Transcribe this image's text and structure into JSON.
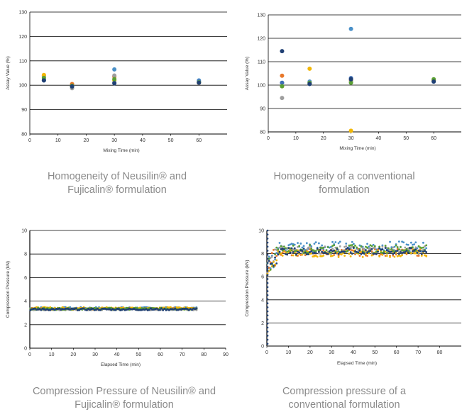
{
  "chart_data": [
    {
      "type": "scatter",
      "title": "",
      "xlabel": "Mixing Time (min)",
      "ylabel": "Assay Value (%)",
      "xlim": [
        0,
        70
      ],
      "ylim": [
        80,
        130
      ],
      "xticks": [
        0,
        10,
        20,
        30,
        40,
        50,
        60
      ],
      "yticks": [
        80,
        90,
        100,
        110,
        120,
        130
      ],
      "grid": "horizontal",
      "series": [
        {
          "color": "#4a90c8",
          "points": [
            [
              5,
              102.5
            ],
            [
              15,
              100.0
            ],
            [
              30,
              106.5
            ],
            [
              60,
              102.0
            ]
          ]
        },
        {
          "color": "#e8782a",
          "points": [
            [
              5,
              104.0
            ],
            [
              15,
              100.5
            ],
            [
              30,
              103.5
            ],
            [
              60,
              101.0
            ]
          ]
        },
        {
          "color": "#9e9e9e",
          "points": [
            [
              5,
              103.5
            ],
            [
              15,
              98.8
            ],
            [
              30,
              104.0
            ],
            [
              60,
              101.5
            ]
          ]
        },
        {
          "color": "#f2b705",
          "points": [
            [
              5,
              104.2
            ],
            [
              15,
              99.5
            ],
            [
              30,
              102.0
            ],
            [
              60,
              101.0
            ]
          ]
        },
        {
          "color": "#3f6eb5",
          "points": [
            [
              5,
              102.0
            ],
            [
              15,
              99.5
            ],
            [
              30,
              101.0
            ],
            [
              60,
              101.5
            ]
          ]
        },
        {
          "color": "#5aa033",
          "points": [
            [
              5,
              103.0
            ],
            [
              15,
              99.8
            ],
            [
              30,
              102.5
            ],
            [
              60,
              101.2
            ]
          ]
        },
        {
          "color": "#1f3f73",
          "points": [
            [
              5,
              102.0
            ],
            [
              15,
              99.5
            ],
            [
              30,
              100.8
            ],
            [
              60,
              101.0
            ]
          ]
        }
      ]
    },
    {
      "type": "scatter",
      "title": "",
      "xlabel": "Mixing Time (min)",
      "ylabel": "Assay Value (%)",
      "xlim": [
        0,
        70
      ],
      "ylim": [
        80,
        130
      ],
      "xticks": [
        0,
        10,
        20,
        30,
        40,
        50,
        60
      ],
      "yticks": [
        80,
        90,
        100,
        110,
        120,
        130
      ],
      "grid": "horizontal",
      "series": [
        {
          "color": "#4a90c8",
          "points": [
            [
              5,
              101.0
            ],
            [
              15,
              101.5
            ],
            [
              30,
              124.0
            ],
            [
              60,
              102.0
            ]
          ]
        },
        {
          "color": "#e8782a",
          "points": [
            [
              5,
              104.0
            ],
            [
              15,
              101.0
            ],
            [
              30,
              102.0
            ],
            [
              60,
              102.0
            ]
          ]
        },
        {
          "color": "#9e9e9e",
          "points": [
            [
              5,
              94.5
            ],
            [
              15,
              101.0
            ],
            [
              30,
              101.5
            ],
            [
              60,
              102.0
            ]
          ]
        },
        {
          "color": "#f2b705",
          "points": [
            [
              5,
              99.5
            ],
            [
              15,
              107.0
            ],
            [
              30,
              80.5
            ],
            [
              60,
              102.0
            ]
          ]
        },
        {
          "color": "#3f6eb5",
          "points": [
            [
              5,
              101.0
            ],
            [
              15,
              100.5
            ],
            [
              30,
              103.0
            ],
            [
              60,
              101.5
            ]
          ]
        },
        {
          "color": "#5aa033",
          "points": [
            [
              5,
              99.5
            ],
            [
              15,
              101.0
            ],
            [
              30,
              101.0
            ],
            [
              60,
              102.5
            ]
          ]
        },
        {
          "color": "#1f3f73",
          "points": [
            [
              5,
              114.5
            ],
            [
              15,
              100.5
            ],
            [
              30,
              102.5
            ],
            [
              60,
              101.5
            ]
          ]
        }
      ]
    },
    {
      "type": "scatter",
      "title": "",
      "xlabel": "Elapsed Time (min)",
      "ylabel": "Compression Pressure (kN)",
      "xlim": [
        0,
        90
      ],
      "ylim": [
        0,
        10
      ],
      "xticks": [
        0,
        10,
        20,
        30,
        40,
        50,
        60,
        70,
        80,
        90
      ],
      "yticks": [
        0,
        2,
        4,
        6,
        8,
        10
      ],
      "grid": "horizontal",
      "description": "dense band of points from 0 to 77 min",
      "series": [
        {
          "color": "#4a90c8",
          "x_range": [
            0,
            77
          ],
          "center": 3.4,
          "spread": 0.08
        },
        {
          "color": "#e8782a",
          "x_range": [
            0,
            77
          ],
          "center": 3.35,
          "spread": 0.08
        },
        {
          "color": "#9e9e9e",
          "x_range": [
            0,
            77
          ],
          "center": 3.3,
          "spread": 0.08
        },
        {
          "color": "#f2b705",
          "x_range": [
            0,
            77
          ],
          "center": 3.4,
          "spread": 0.08
        },
        {
          "color": "#5aa033",
          "x_range": [
            0,
            77
          ],
          "center": 3.35,
          "spread": 0.08
        },
        {
          "color": "#1f3f73",
          "x_range": [
            0,
            77
          ],
          "center": 3.3,
          "spread": 0.08
        }
      ]
    },
    {
      "type": "scatter",
      "title": "",
      "xlabel": "Elapsed Time (min)",
      "ylabel": "Compression Pressure (kN)",
      "xlim": [
        0,
        90
      ],
      "ylim": [
        0,
        10
      ],
      "xticks": [
        0,
        10,
        20,
        30,
        40,
        50,
        60,
        70,
        80
      ],
      "yticks": [
        0,
        2,
        4,
        6,
        8,
        10
      ],
      "grid": "horizontal",
      "description": "scattered band of points from 0 to 74 min, startup spike near 0 min",
      "series": [
        {
          "color": "#4a90c8",
          "x_range": [
            0,
            74
          ],
          "center": 8.6,
          "spread": 0.45
        },
        {
          "color": "#e8782a",
          "x_range": [
            0,
            74
          ],
          "center": 8.1,
          "spread": 0.3
        },
        {
          "color": "#9e9e9e",
          "x_range": [
            0,
            74
          ],
          "center": 8.3,
          "spread": 0.35
        },
        {
          "color": "#f2b705",
          "x_range": [
            0,
            74
          ],
          "center": 8.0,
          "spread": 0.3
        },
        {
          "color": "#5aa033",
          "x_range": [
            0,
            74
          ],
          "center": 8.4,
          "spread": 0.35
        },
        {
          "color": "#1f3f73",
          "x_range": [
            0,
            74
          ],
          "center": 8.2,
          "spread": 0.3
        }
      ]
    }
  ],
  "captions": [
    {
      "line1": "Homogeneity of Neusilin® and",
      "line2": "Fujicalin® formulation"
    },
    {
      "line1": "Homogeneity of a conventional",
      "line2": "formulation"
    },
    {
      "line1": "Compression Pressure of Neusilin® and",
      "line2": "Fujicalin® formulation"
    },
    {
      "line1": "Compression pressure of a",
      "line2": "conventional formulation"
    }
  ]
}
